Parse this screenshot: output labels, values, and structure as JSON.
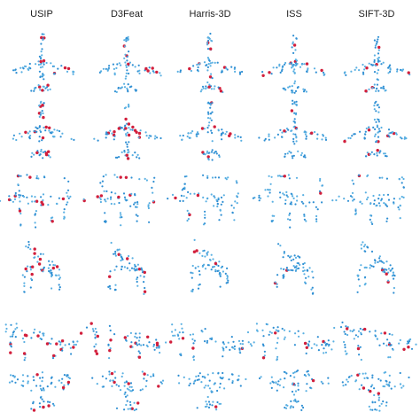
{
  "header": {
    "columns": [
      "USIP",
      "D3Feat",
      "Harris-3D",
      "ISS",
      "SIFT-3D"
    ]
  }
}
